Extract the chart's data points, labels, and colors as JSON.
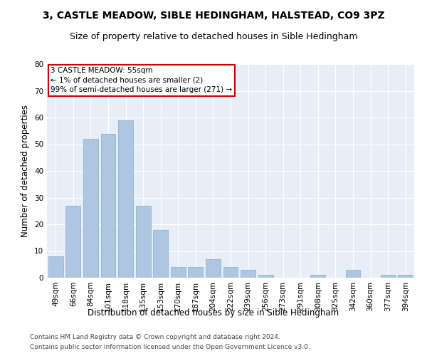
{
  "title": "3, CASTLE MEADOW, SIBLE HEDINGHAM, HALSTEAD, CO9 3PZ",
  "subtitle": "Size of property relative to detached houses in Sible Hedingham",
  "xlabel": "Distribution of detached houses by size in Sible Hedingham",
  "ylabel": "Number of detached properties",
  "categories": [
    "49sqm",
    "66sqm",
    "84sqm",
    "101sqm",
    "118sqm",
    "135sqm",
    "153sqm",
    "170sqm",
    "187sqm",
    "204sqm",
    "222sqm",
    "239sqm",
    "256sqm",
    "273sqm",
    "291sqm",
    "308sqm",
    "325sqm",
    "342sqm",
    "360sqm",
    "377sqm",
    "394sqm"
  ],
  "values": [
    8,
    27,
    52,
    54,
    59,
    27,
    18,
    4,
    4,
    7,
    4,
    3,
    1,
    0,
    0,
    1,
    0,
    3,
    0,
    1,
    1
  ],
  "bar_color": "#aec6e0",
  "bar_edge_color": "#7aafd4",
  "background_color": "#e8eef8",
  "annotation_box_text": "3 CASTLE MEADOW: 55sqm\n← 1% of detached houses are smaller (2)\n99% of semi-detached houses are larger (271) →",
  "annotation_box_color": "#cc0000",
  "ylim": [
    0,
    80
  ],
  "yticks": [
    0,
    10,
    20,
    30,
    40,
    50,
    60,
    70,
    80
  ],
  "footer_line1": "Contains HM Land Registry data © Crown copyright and database right 2024.",
  "footer_line2": "Contains public sector information licensed under the Open Government Licence v3.0.",
  "title_fontsize": 10,
  "subtitle_fontsize": 9,
  "xlabel_fontsize": 8.5,
  "ylabel_fontsize": 8.5,
  "tick_fontsize": 7.5,
  "footer_fontsize": 6.5,
  "annotation_fontsize": 7.5
}
